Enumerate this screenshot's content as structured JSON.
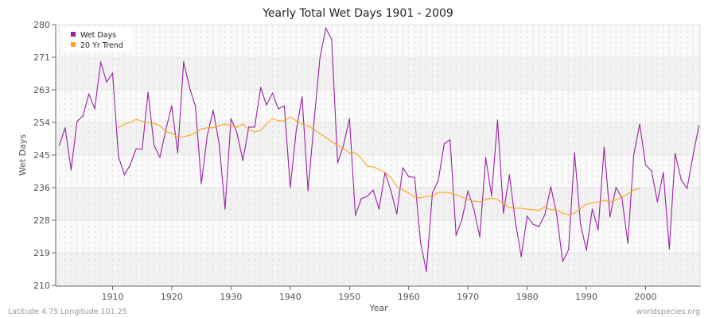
{
  "chart_data": {
    "type": "line",
    "title": "Yearly Total Wet Days 1901 - 2009",
    "xlabel": "Year",
    "ylabel": "Wet Days",
    "xlim": [
      1901,
      2009
    ],
    "ylim": [
      210,
      280
    ],
    "x_ticks": [
      "1910",
      "1920",
      "1930",
      "1940",
      "1950",
      "1960",
      "1970",
      "1980",
      "1990",
      "2000"
    ],
    "y_ticks": [
      "210",
      "219",
      "228",
      "236",
      "245",
      "254",
      "263",
      "271",
      "280"
    ],
    "grid": true,
    "legend_position": "top-left",
    "series": [
      {
        "name": "Wet Days",
        "color": "#9b1fa5",
        "x_start": 1901,
        "values": [
          247.6,
          252.3,
          241,
          254,
          255.5,
          261.4,
          257.4,
          270,
          264.6,
          267,
          244.6,
          239.7,
          242.4,
          246.7,
          246.5,
          261.9,
          247.6,
          244.4,
          251.8,
          258.2,
          245.6,
          270,
          263.1,
          258,
          237.3,
          250.3,
          257,
          248,
          230.5,
          254.8,
          251,
          243.5,
          252.5,
          252.5,
          263.1,
          258.4,
          261.6,
          257.4,
          258.2,
          236.3,
          251.4,
          260.6,
          235.4,
          253.5,
          270.8,
          279.1,
          276,
          242.9,
          247.6,
          254.8,
          228.8,
          233.3,
          233.9,
          235.6,
          230.5,
          240.3,
          235.4,
          229.2,
          241.6,
          239.2,
          239,
          221.5,
          213.8,
          234.8,
          238.2,
          248,
          249.1,
          223.4,
          227.7,
          235.4,
          230.5,
          223,
          244.4,
          234.1,
          254.4,
          229.4,
          239.7,
          227.3,
          217.7,
          228.6,
          226.4,
          225.8,
          229,
          236.5,
          229,
          216.4,
          219.6,
          245.6,
          226.6,
          219.4,
          230.5,
          224.9,
          247.1,
          228.4,
          236.3,
          233.5,
          221.3,
          245,
          253.3,
          242.4,
          240.7,
          232.4,
          240.3,
          219.8,
          245.4,
          238.4,
          236,
          244.8,
          252.9
        ]
      },
      {
        "name": "20 Yr Trend",
        "color": "#ffa31a",
        "x_start": 1911,
        "values": [
          252.3,
          253.3,
          253.7,
          254.6,
          254,
          253.7,
          253.5,
          252.9,
          251.4,
          250.8,
          249.9,
          249.9,
          250.3,
          251,
          252,
          252.3,
          252.3,
          252.9,
          253.3,
          252.9,
          252.5,
          253.3,
          251.8,
          251.2,
          251.6,
          253.3,
          254.8,
          254.2,
          254.2,
          255.2,
          254.2,
          253.3,
          252.9,
          251.8,
          250.8,
          249.7,
          248.6,
          247.6,
          246.7,
          245.6,
          245.6,
          244.1,
          242,
          241.8,
          241.2,
          240.3,
          239,
          236.5,
          235.6,
          234.8,
          233.7,
          233.5,
          233.9,
          233.9,
          235,
          235,
          234.8,
          234.3,
          233.7,
          233,
          232.6,
          232.4,
          233,
          233.5,
          233,
          232,
          230.9,
          230.7,
          230.7,
          230.5,
          230.3,
          230.1,
          231.1,
          230.3,
          230.3,
          229.4,
          229,
          229.4,
          230.7,
          231.8,
          232.2,
          232.4,
          232.8,
          232.4,
          233,
          233.7,
          234.5,
          235.6,
          236
        ]
      }
    ]
  },
  "footer": {
    "location": "Latitude 4.75 Longitude 101.25",
    "source": "worldspecies.org"
  }
}
